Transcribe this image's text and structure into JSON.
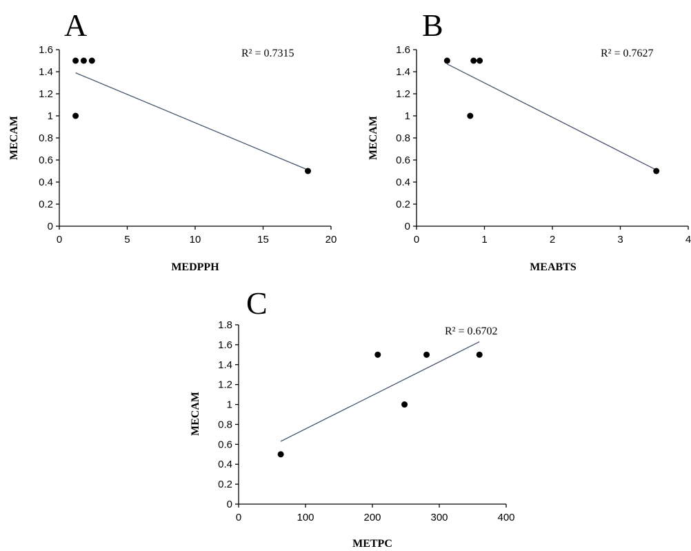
{
  "chart_data": [
    {
      "type": "scatter",
      "panel_label": "A",
      "xlabel": "MEDPPH",
      "ylabel": "MECAM",
      "xlim": [
        0,
        20
      ],
      "ylim": [
        0,
        1.6
      ],
      "x_ticks": [
        "0",
        "5",
        "10",
        "15",
        "20"
      ],
      "y_ticks": [
        "0",
        "0.2",
        "0.4",
        "0.6",
        "0.8",
        "1",
        "1.2",
        "1.4",
        "1.6"
      ],
      "points": [
        {
          "x": 1.2,
          "y": 1.5
        },
        {
          "x": 1.8,
          "y": 1.5
        },
        {
          "x": 2.4,
          "y": 1.5
        },
        {
          "x": 1.2,
          "y": 1.0
        },
        {
          "x": 18.3,
          "y": 0.5
        }
      ],
      "trendline": {
        "x": [
          1.2,
          18.3
        ],
        "y": [
          1.39,
          0.51
        ]
      },
      "r2_text": "R² = 0.7315"
    },
    {
      "type": "scatter",
      "panel_label": "B",
      "xlabel": "MEABTS",
      "ylabel": "MECAM",
      "xlim": [
        0,
        4
      ],
      "ylim": [
        0,
        1.6
      ],
      "x_ticks": [
        "0",
        "1",
        "2",
        "3",
        "4"
      ],
      "y_ticks": [
        "0",
        "0.2",
        "0.4",
        "0.6",
        "0.8",
        "1",
        "1.2",
        "1.4",
        "1.6"
      ],
      "points": [
        {
          "x": 0.45,
          "y": 1.5
        },
        {
          "x": 0.84,
          "y": 1.5
        },
        {
          "x": 0.93,
          "y": 1.5
        },
        {
          "x": 0.79,
          "y": 1.0
        },
        {
          "x": 3.53,
          "y": 0.5
        }
      ],
      "trendline": {
        "x": [
          0.45,
          3.53
        ],
        "y": [
          1.47,
          0.51
        ]
      },
      "r2_text": "R² = 0.7627"
    },
    {
      "type": "scatter",
      "panel_label": "C",
      "xlabel": "METPC",
      "ylabel": "MECAM",
      "xlim": [
        0,
        400
      ],
      "ylim": [
        0,
        1.8
      ],
      "x_ticks": [
        "0",
        "100",
        "200",
        "300",
        "400"
      ],
      "y_ticks": [
        "0",
        "0.2",
        "0.4",
        "0.6",
        "0.8",
        "1",
        "1.2",
        "1.4",
        "1.6",
        "1.8"
      ],
      "points": [
        {
          "x": 63,
          "y": 0.5
        },
        {
          "x": 208,
          "y": 1.5
        },
        {
          "x": 248,
          "y": 1.0
        },
        {
          "x": 281,
          "y": 1.5
        },
        {
          "x": 360,
          "y": 1.5
        }
      ],
      "trendline": {
        "x": [
          63,
          360
        ],
        "y": [
          0.63,
          1.63
        ]
      },
      "r2_text": "R² = 0.6702"
    }
  ]
}
